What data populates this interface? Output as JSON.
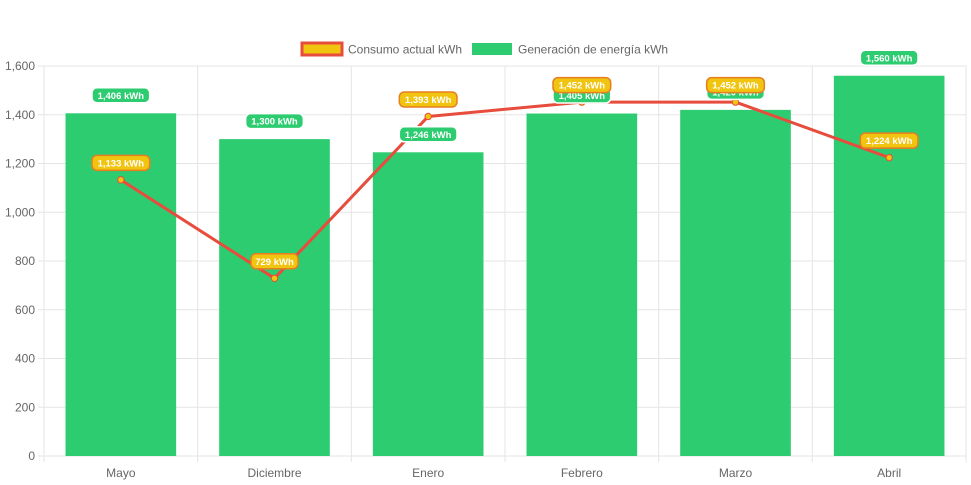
{
  "chart_data": {
    "type": "bar",
    "categories": [
      "Mayo",
      "Diciembre",
      "Enero",
      "Febrero",
      "Marzo",
      "Abril"
    ],
    "series": [
      {
        "name": "Consumo actual kWh",
        "type": "line",
        "values": [
          1133,
          729,
          1393,
          1452,
          1452,
          1224
        ],
        "labels": [
          "1,133 kWh",
          "729 kWh",
          "1,393 kWh",
          "1,452 kWh",
          "1,452 kWh",
          "1,224 kWh"
        ],
        "color": "#e74c3c",
        "point_color": "#f1c40f"
      },
      {
        "name": "Generación de energía kWh",
        "type": "bar",
        "values": [
          1406,
          1300,
          1246,
          1405,
          1420,
          1560
        ],
        "labels": [
          "1,406 kWh",
          "1,300 kWh",
          "1,246 kWh",
          "1,405 kWh",
          "1,420 kWh",
          "1,560 kWh"
        ],
        "color": "#2ecc71"
      }
    ],
    "y_ticks": [
      "0",
      "200",
      "400",
      "600",
      "800",
      "1,000",
      "1,200",
      "1,400",
      "1,600"
    ],
    "ylim": [
      0,
      1600
    ],
    "grid": true,
    "legend": "top-center"
  }
}
